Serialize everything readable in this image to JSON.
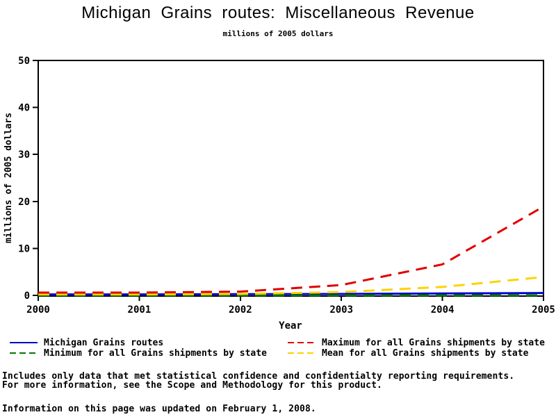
{
  "chart_data": {
    "type": "line",
    "title": "Michigan Grains routes: Miscellaneous Revenue",
    "subtitle": "millions of 2005 dollars",
    "xlabel": "Year",
    "ylabel": "millions of 2005 dollars",
    "ylim": [
      0,
      50
    ],
    "yticks": [
      0,
      10,
      20,
      30,
      40,
      50
    ],
    "categories": [
      2000,
      2001,
      2002,
      2003,
      2004,
      2005
    ],
    "series": [
      {
        "name": "Michigan Grains routes",
        "color": "#0000d0",
        "dash": "solid",
        "values": [
          0.2,
          0.2,
          0.25,
          0.3,
          0.4,
          0.5
        ]
      },
      {
        "name": "Minimum for all Grains shipments by state",
        "color": "#007800",
        "dash": "dashed",
        "values": [
          0,
          0,
          0,
          0,
          0,
          0
        ]
      },
      {
        "name": "Maximum for all Grains shipments by state",
        "color": "#e00000",
        "dash": "dashed",
        "values": [
          0.6,
          0.6,
          0.8,
          2.2,
          6.6,
          18.9
        ]
      },
      {
        "name": "Mean for all Grains shipments by state",
        "color": "#ffd200",
        "dash": "dashed",
        "values": [
          0.2,
          0.2,
          0.3,
          0.7,
          1.8,
          3.9
        ]
      }
    ],
    "draw_order": [
      0,
      1,
      3,
      2
    ],
    "axis_color": "#000000",
    "grid": false,
    "legend_position": "bottom-two-columns"
  },
  "legend": {
    "items": [
      {
        "label": "Michigan Grains routes",
        "series": 0
      },
      {
        "label": "Maximum for all Grains shipments by state",
        "series": 2
      },
      {
        "label": "Minimum for all Grains shipments by state",
        "series": 1
      },
      {
        "label": "Mean for all Grains shipments by state",
        "series": 3
      }
    ]
  },
  "footer": {
    "line1": "Includes only data that met statistical confidence and confidentialty reporting requirements.",
    "line2": "For more information, see the Scope and Methodology for this product.",
    "line3": "Information on this page was updated on February 1, 2008."
  }
}
